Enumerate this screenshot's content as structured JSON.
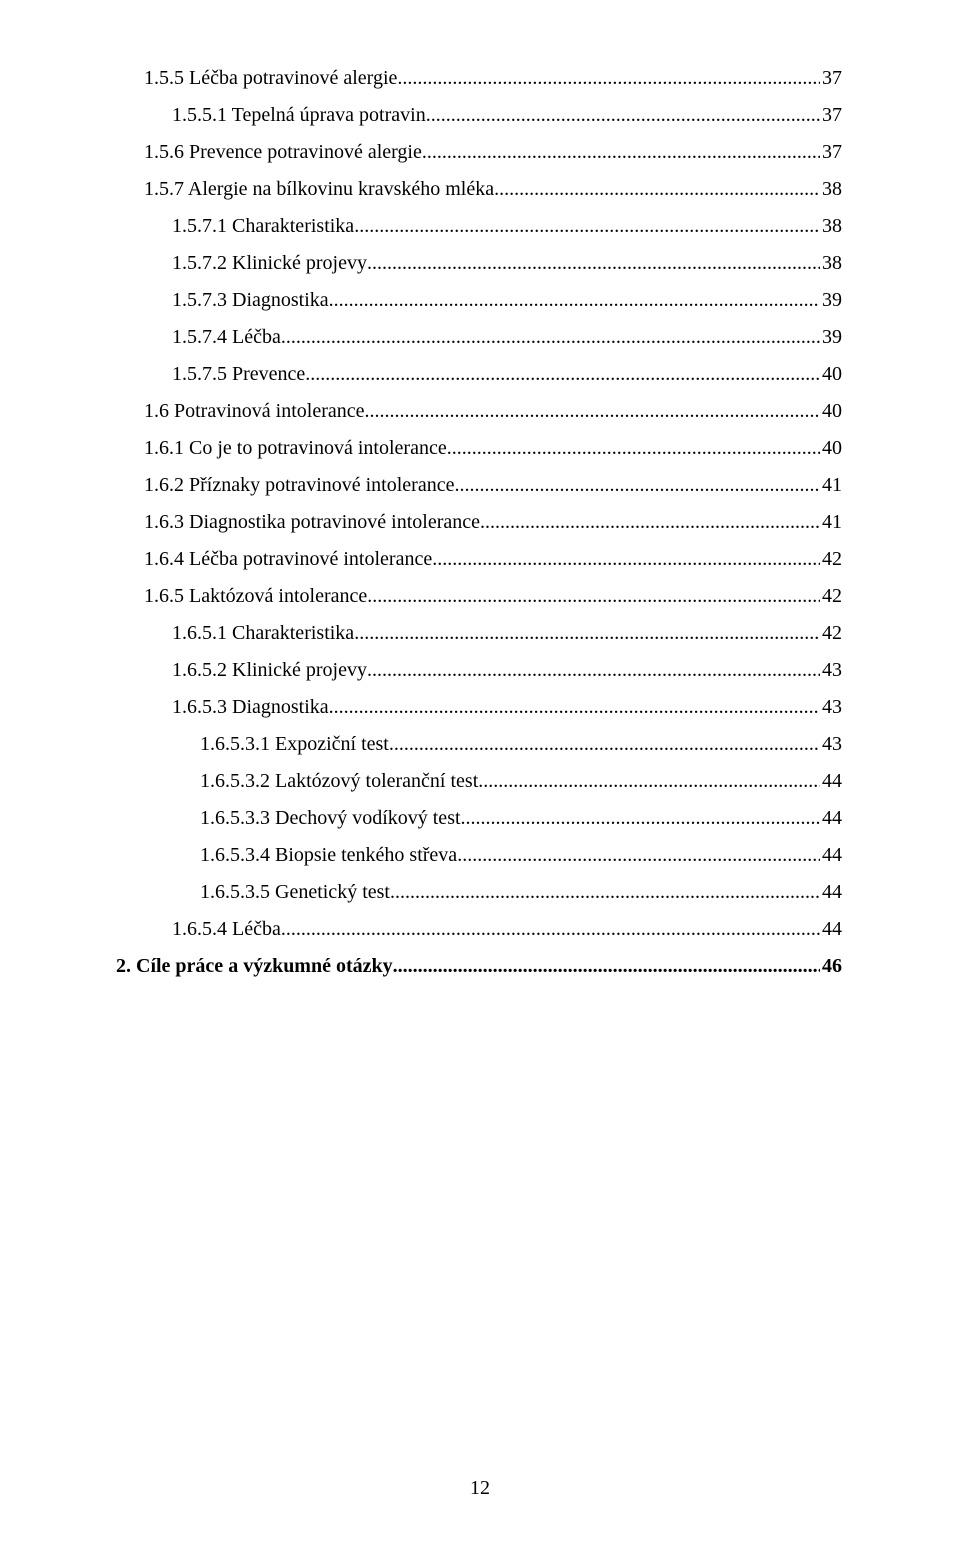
{
  "page_number": "12",
  "entries": [
    {
      "indent": 3,
      "bold": false,
      "label": "1.5.5 Léčba potravinové alergie",
      "page": "37"
    },
    {
      "indent": 4,
      "bold": false,
      "label": "1.5.5.1 Tepelná úprava potravin",
      "page": "37"
    },
    {
      "indent": 3,
      "bold": false,
      "label": "1.5.6 Prevence potravinové alergie",
      "page": "37"
    },
    {
      "indent": 3,
      "bold": false,
      "label": "1.5.7 Alergie na bílkovinu kravského mléka",
      "page": "38"
    },
    {
      "indent": 4,
      "bold": false,
      "label": "1.5.7.1 Charakteristika",
      "page": "38"
    },
    {
      "indent": 4,
      "bold": false,
      "label": "1.5.7.2 Klinické projevy",
      "page": "38"
    },
    {
      "indent": 4,
      "bold": false,
      "label": "1.5.7.3 Diagnostika",
      "page": "39"
    },
    {
      "indent": 4,
      "bold": false,
      "label": "1.5.7.4 Léčba",
      "page": "39"
    },
    {
      "indent": 4,
      "bold": false,
      "label": "1.5.7.5 Prevence",
      "page": "40"
    },
    {
      "indent": 3,
      "bold": false,
      "label": "1.6 Potravinová intolerance",
      "page": "40"
    },
    {
      "indent": 3,
      "bold": false,
      "label": "1.6.1 Co je to potravinová intolerance",
      "page": "40"
    },
    {
      "indent": 3,
      "bold": false,
      "label": "1.6.2 Příznaky potravinové intolerance",
      "page": "41"
    },
    {
      "indent": 3,
      "bold": false,
      "label": "1.6.3 Diagnostika potravinové intolerance",
      "page": "41"
    },
    {
      "indent": 3,
      "bold": false,
      "label": "1.6.4 Léčba potravinové intolerance",
      "page": "42"
    },
    {
      "indent": 3,
      "bold": false,
      "label": "1.6.5 Laktózová intolerance",
      "page": "42"
    },
    {
      "indent": 4,
      "bold": false,
      "label": "1.6.5.1 Charakteristika",
      "page": "42"
    },
    {
      "indent": 4,
      "bold": false,
      "label": "1.6.5.2 Klinické projevy",
      "page": "43"
    },
    {
      "indent": 4,
      "bold": false,
      "label": "1.6.5.3 Diagnostika",
      "page": "43"
    },
    {
      "indent": 5,
      "bold": false,
      "label": "1.6.5.3.1 Expoziční test",
      "page": "43"
    },
    {
      "indent": 5,
      "bold": false,
      "label": "1.6.5.3.2 Laktózový toleranční test",
      "page": "44"
    },
    {
      "indent": 5,
      "bold": false,
      "label": "1.6.5.3.3 Dechový vodíkový test",
      "page": "44"
    },
    {
      "indent": 5,
      "bold": false,
      "label": "1.6.5.3.4 Biopsie tenkého střeva",
      "page": "44"
    },
    {
      "indent": 5,
      "bold": false,
      "label": "1.6.5.3.5 Genetický test",
      "page": "44"
    },
    {
      "indent": 4,
      "bold": false,
      "label": "1.6.5.4 Léčba",
      "page": "44"
    },
    {
      "indent": 0,
      "bold": true,
      "label": "2. Cíle práce a výzkumné otázky",
      "page": "46"
    }
  ]
}
